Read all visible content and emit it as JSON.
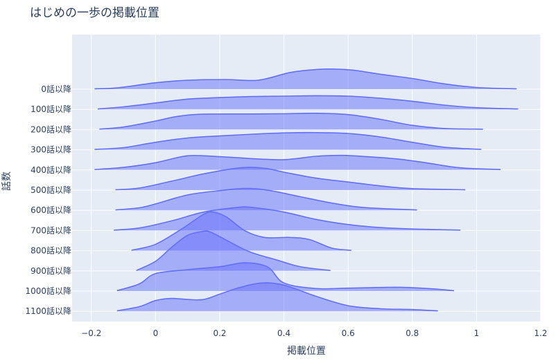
{
  "chart_data": {
    "type": "ridgeline",
    "title": "はじめの一歩の掲載位置",
    "xlabel": "掲載位置",
    "ylabel": "話数",
    "xlim": [
      -0.26,
      1.2
    ],
    "x_ticks": [
      -0.2,
      0,
      0.2,
      0.4,
      0.6,
      0.8,
      1,
      1.2
    ],
    "x_tick_labels": [
      "−0.2",
      "0",
      "0.2",
      "0.4",
      "0.6",
      "0.8",
      "1",
      "1.2"
    ],
    "grid": true,
    "legend": "none",
    "colors": {
      "line": "#636efa",
      "fill": "rgba(99,110,250,0.5)",
      "plot_bg": "#e5ecf6",
      "text": "#2a3f5f",
      "grid": "#ffffff"
    },
    "series": [
      {
        "name": "0話以降",
        "x": [
          -0.19,
          -0.12,
          0.0,
          0.1,
          0.22,
          0.32,
          0.42,
          0.5,
          0.56,
          0.62,
          0.7,
          0.8,
          0.9,
          1.0,
          1.125
        ],
        "y": [
          0.02,
          0.06,
          0.3,
          0.42,
          0.45,
          0.42,
          0.78,
          0.92,
          0.94,
          0.88,
          0.7,
          0.5,
          0.25,
          0.08,
          0.02
        ]
      },
      {
        "name": "100話以降",
        "x": [
          -0.18,
          -0.1,
          0.0,
          0.1,
          0.2,
          0.3,
          0.4,
          0.5,
          0.6,
          0.7,
          0.8,
          0.9,
          1.0,
          1.13
        ],
        "y": [
          0.02,
          0.12,
          0.3,
          0.48,
          0.55,
          0.6,
          0.62,
          0.64,
          0.62,
          0.52,
          0.38,
          0.2,
          0.08,
          0.02
        ]
      },
      {
        "name": "200話以降",
        "x": [
          -0.175,
          -0.1,
          0.0,
          0.07,
          0.15,
          0.3,
          0.4,
          0.5,
          0.6,
          0.7,
          0.8,
          0.9,
          1.02
        ],
        "y": [
          0.02,
          0.12,
          0.4,
          0.62,
          0.72,
          0.73,
          0.74,
          0.76,
          0.7,
          0.48,
          0.2,
          0.05,
          0.02
        ]
      },
      {
        "name": "300話以降",
        "x": [
          -0.19,
          -0.1,
          0.0,
          0.1,
          0.22,
          0.35,
          0.45,
          0.5,
          0.6,
          0.7,
          0.8,
          0.9,
          1.015
        ],
        "y": [
          0.02,
          0.1,
          0.35,
          0.55,
          0.66,
          0.76,
          0.8,
          0.8,
          0.76,
          0.6,
          0.35,
          0.12,
          0.02
        ]
      },
      {
        "name": "400話以降",
        "x": [
          -0.19,
          -0.1,
          0.0,
          0.1,
          0.2,
          0.3,
          0.4,
          0.5,
          0.58,
          0.65,
          0.75,
          0.85,
          0.95,
          1.075
        ],
        "y": [
          0.02,
          0.12,
          0.34,
          0.66,
          0.62,
          0.53,
          0.48,
          0.64,
          0.68,
          0.63,
          0.52,
          0.32,
          0.1,
          0.02
        ]
      },
      {
        "name": "500話以降",
        "x": [
          -0.125,
          -0.05,
          0.05,
          0.15,
          0.25,
          0.3,
          0.35,
          0.4,
          0.5,
          0.6,
          0.7,
          0.8,
          0.965
        ],
        "y": [
          0.02,
          0.1,
          0.42,
          0.76,
          1.02,
          1.06,
          1.0,
          0.84,
          0.56,
          0.38,
          0.2,
          0.07,
          0.02
        ]
      },
      {
        "name": "600話以降",
        "x": [
          -0.125,
          -0.05,
          0.0,
          0.1,
          0.2,
          0.28,
          0.35,
          0.45,
          0.55,
          0.65,
          0.815
        ],
        "y": [
          0.02,
          0.12,
          0.3,
          0.72,
          0.92,
          1.02,
          0.94,
          0.64,
          0.34,
          0.13,
          0.02
        ]
      },
      {
        "name": "700話以降",
        "x": [
          -0.13,
          -0.05,
          0.05,
          0.15,
          0.25,
          0.3,
          0.4,
          0.5,
          0.6,
          0.7,
          0.8,
          0.95
        ],
        "y": [
          0.02,
          0.12,
          0.45,
          0.86,
          1.07,
          1.08,
          0.86,
          0.52,
          0.28,
          0.14,
          0.07,
          0.02
        ]
      },
      {
        "name": "800話以降",
        "x": [
          -0.075,
          0.0,
          0.08,
          0.15,
          0.18,
          0.22,
          0.28,
          0.34,
          0.42,
          0.48,
          0.55,
          0.61
        ],
        "y": [
          0.02,
          0.3,
          1.0,
          1.7,
          1.8,
          1.58,
          0.92,
          0.62,
          0.62,
          0.52,
          0.12,
          0.02
        ]
      },
      {
        "name": "900話以降",
        "x": [
          -0.06,
          0.0,
          0.05,
          0.1,
          0.15,
          0.17,
          0.2,
          0.25,
          0.3,
          0.38,
          0.45,
          0.545
        ],
        "y": [
          0.02,
          0.45,
          1.1,
          1.66,
          1.85,
          1.82,
          1.6,
          1.2,
          0.85,
          0.5,
          0.2,
          0.02
        ]
      },
      {
        "name": "1000話以降",
        "x": [
          -0.12,
          -0.05,
          0.0,
          0.1,
          0.2,
          0.28,
          0.35,
          0.4,
          0.5,
          0.6,
          0.75,
          0.85,
          0.93
        ],
        "y": [
          0.02,
          0.34,
          0.82,
          1.0,
          1.14,
          1.32,
          1.12,
          0.38,
          0.12,
          0.14,
          0.18,
          0.12,
          0.02
        ]
      },
      {
        "name": "1100話以降",
        "x": [
          -0.12,
          -0.05,
          0.0,
          0.05,
          0.1,
          0.15,
          0.2,
          0.26,
          0.33,
          0.4,
          0.5,
          0.6,
          0.7,
          0.8,
          0.88
        ],
        "y": [
          0.02,
          0.22,
          0.5,
          0.6,
          0.55,
          0.55,
          0.8,
          1.1,
          1.32,
          1.22,
          0.7,
          0.26,
          0.12,
          0.08,
          0.02
        ]
      }
    ]
  }
}
